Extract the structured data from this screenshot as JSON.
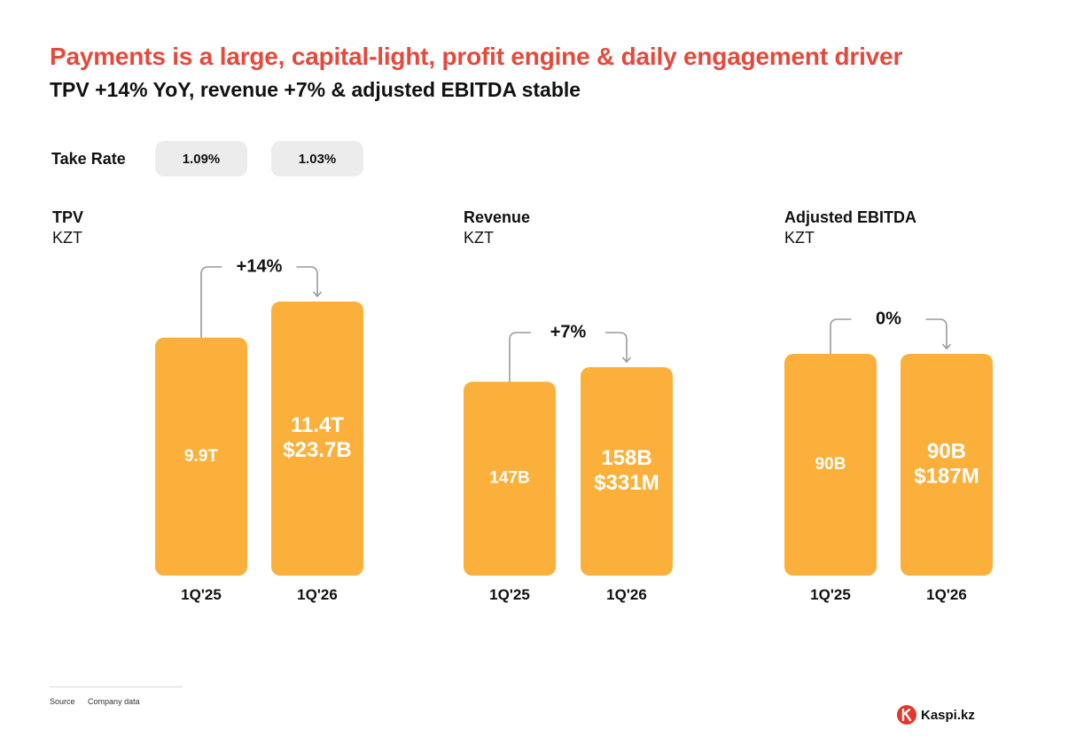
{
  "header": {
    "title": "Payments is a large, capital-light, profit engine & daily engagement driver",
    "subtitle": "TPV +14% YoY, revenue +7% & adjusted EBITDA stable"
  },
  "take_rate": {
    "label": "Take Rate",
    "values": [
      "1.09%",
      "1.03%"
    ]
  },
  "colors": {
    "bar": "#fbb03b",
    "title": "#e5493c",
    "connector": "#9a9a9a",
    "pill": "#ececec"
  },
  "chart_data": [
    {
      "type": "bar",
      "title": "TPV",
      "unit": "KZT",
      "categories": [
        "1Q'25",
        "1Q'26"
      ],
      "values": [
        9.9,
        11.4
      ],
      "value_unit": "T KZT",
      "labels": [
        [
          "9.9T"
        ],
        [
          "11.4T",
          "$23.7B"
        ]
      ],
      "change_label": "+14%"
    },
    {
      "type": "bar",
      "title": "Revenue",
      "unit": "KZT",
      "categories": [
        "1Q'25",
        "1Q'26"
      ],
      "values": [
        147,
        158
      ],
      "value_unit": "B KZT",
      "labels": [
        [
          "147B"
        ],
        [
          "158B",
          "$331M"
        ]
      ],
      "change_label": "+7%"
    },
    {
      "type": "bar",
      "title": "Adjusted EBITDA",
      "unit": "KZT",
      "categories": [
        "1Q'25",
        "1Q'26"
      ],
      "values": [
        90,
        90
      ],
      "value_unit": "B KZT",
      "labels": [
        [
          "90B"
        ],
        [
          "90B",
          "$187M"
        ]
      ],
      "change_label": "0%"
    }
  ],
  "footer": {
    "source_label": "Source",
    "source_value": "Company data"
  },
  "logo": {
    "text": "Kaspi.kz"
  }
}
